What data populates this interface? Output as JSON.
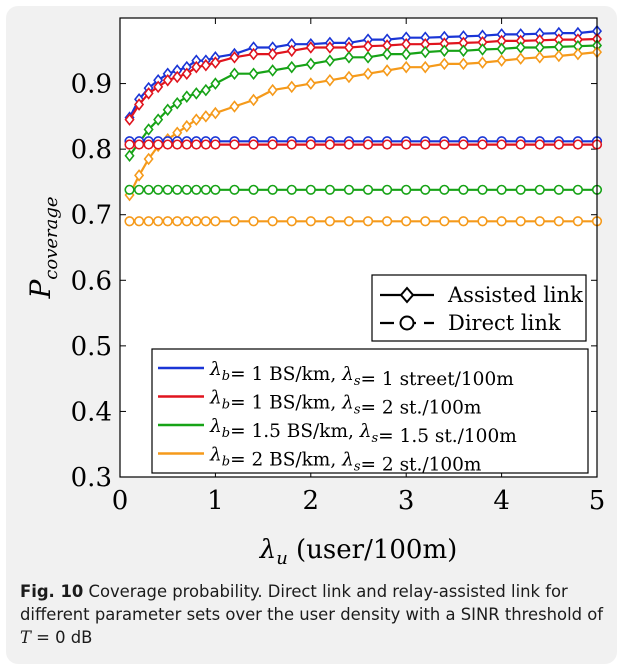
{
  "chart_data": {
    "type": "line",
    "xlabel": "λ_u (user/100m)",
    "ylabel": "P_coverage",
    "xlim": [
      0,
      5
    ],
    "ylim": [
      0.3,
      1.0
    ],
    "xticks": [
      0,
      1,
      2,
      3,
      4,
      5
    ],
    "yticks": [
      0.3,
      0.4,
      0.5,
      0.6,
      0.7,
      0.8,
      0.9
    ],
    "xtick_labels": [
      "0",
      "1",
      "2",
      "3",
      "4",
      "5"
    ],
    "ytick_labels": [
      "0.3",
      "0.4",
      "0.5",
      "0.6",
      "0.7",
      "0.8",
      "0.9"
    ],
    "grid": false,
    "marker_legend": {
      "position": "right",
      "entries": [
        {
          "label": "Assisted link",
          "marker": "diamond"
        },
        {
          "label": "Direct link",
          "marker": "circle"
        }
      ]
    },
    "color_legend": {
      "position": "bottom-right",
      "entries": [
        {
          "parts": [
            "λ_b= 1 BS/km, λ_s= 1 street/100m"
          ],
          "color": "#1a35d6"
        },
        {
          "parts": [
            "λ_b= 1 BS/km, λ_s= 2 st./100m"
          ],
          "color": "#e0141e"
        },
        {
          "parts": [
            "λ_b= 1.5 BS/km, λ_s= 1.5 st./100m"
          ],
          "color": "#17a317"
        },
        {
          "parts": [
            "λ_b= 2 BS/km, λ_s= 2 st./100m"
          ],
          "color": "#f59a1b"
        }
      ]
    },
    "x": [
      0.1,
      0.2,
      0.3,
      0.4,
      0.5,
      0.6,
      0.7,
      0.8,
      0.9,
      1.0,
      1.2,
      1.4,
      1.6,
      1.8,
      2.0,
      2.2,
      2.4,
      2.6,
      2.8,
      3.0,
      3.2,
      3.4,
      3.6,
      3.8,
      4.0,
      4.2,
      4.4,
      4.6,
      4.8,
      5.0
    ],
    "series": [
      {
        "link": "assisted",
        "color": "#1a35d6",
        "values": [
          0.848,
          0.876,
          0.893,
          0.905,
          0.915,
          0.92,
          0.925,
          0.935,
          0.935,
          0.94,
          0.945,
          0.955,
          0.955,
          0.96,
          0.96,
          0.962,
          0.962,
          0.967,
          0.967,
          0.97,
          0.97,
          0.971,
          0.972,
          0.973,
          0.975,
          0.975,
          0.976,
          0.977,
          0.977,
          0.98
        ]
      },
      {
        "link": "assisted",
        "color": "#e0141e",
        "values": [
          0.845,
          0.868,
          0.885,
          0.895,
          0.905,
          0.91,
          0.915,
          0.925,
          0.928,
          0.932,
          0.94,
          0.945,
          0.945,
          0.95,
          0.955,
          0.955,
          0.955,
          0.957,
          0.958,
          0.96,
          0.96,
          0.961,
          0.962,
          0.963,
          0.965,
          0.965,
          0.966,
          0.967,
          0.967,
          0.968
        ]
      },
      {
        "link": "assisted",
        "color": "#17a317",
        "values": [
          0.79,
          0.81,
          0.83,
          0.845,
          0.86,
          0.87,
          0.88,
          0.885,
          0.89,
          0.9,
          0.915,
          0.915,
          0.92,
          0.925,
          0.93,
          0.935,
          0.94,
          0.94,
          0.945,
          0.945,
          0.948,
          0.95,
          0.95,
          0.952,
          0.953,
          0.955,
          0.955,
          0.956,
          0.957,
          0.958
        ]
      },
      {
        "link": "assisted",
        "color": "#f59a1b",
        "values": [
          0.73,
          0.76,
          0.785,
          0.805,
          0.815,
          0.825,
          0.835,
          0.845,
          0.85,
          0.855,
          0.865,
          0.875,
          0.89,
          0.895,
          0.9,
          0.905,
          0.91,
          0.915,
          0.92,
          0.925,
          0.925,
          0.93,
          0.93,
          0.932,
          0.935,
          0.938,
          0.94,
          0.942,
          0.945,
          0.948
        ]
      },
      {
        "link": "direct",
        "color": "#1a35d6",
        "values_constant": 0.812
      },
      {
        "link": "direct",
        "color": "#e0141e",
        "values_constant": 0.807
      },
      {
        "link": "direct",
        "color": "#17a317",
        "values_constant": 0.738
      },
      {
        "link": "direct",
        "color": "#f59a1b",
        "values_constant": 0.69
      }
    ]
  },
  "caption": {
    "fig_label": "Fig. 10",
    "text": " Coverage probability. Direct link and relay-assisted link for different parameter sets over the user density with a SINR threshold of ",
    "math": "T",
    "tail": " = 0 dB"
  }
}
